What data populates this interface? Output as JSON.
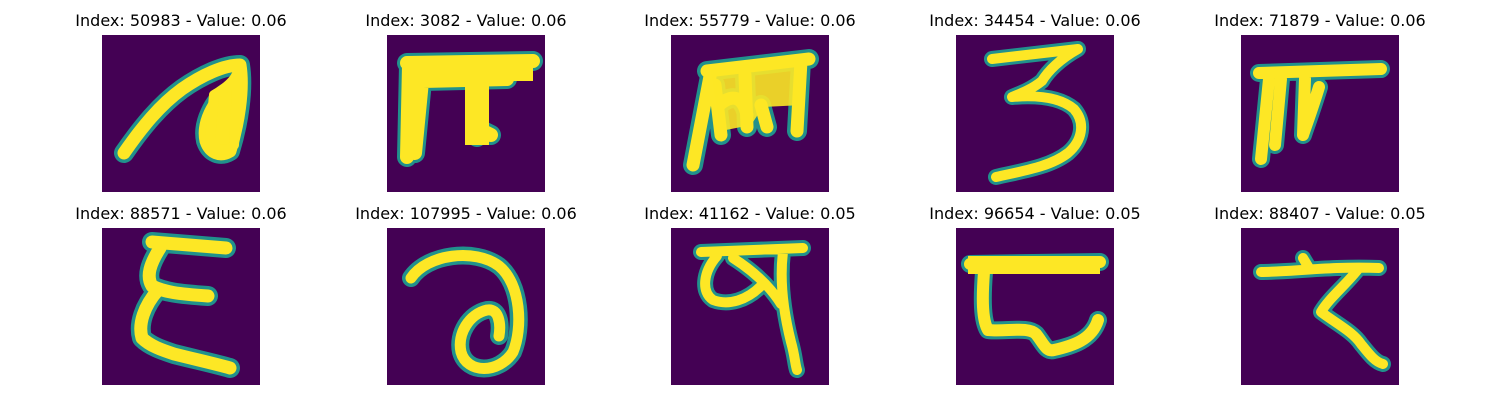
{
  "colors": {
    "background": "#440154",
    "stroke_edge": "#21918c",
    "stroke_core": "#fde725"
  },
  "samples": [
    {
      "title": "Index: 50983 - Value: 0.06",
      "glyph": "glyph-50983"
    },
    {
      "title": "Index: 3082 - Value: 0.06",
      "glyph": "glyph-3082"
    },
    {
      "title": "Index: 55779 - Value: 0.06",
      "glyph": "glyph-55779"
    },
    {
      "title": "Index: 34454 - Value: 0.06",
      "glyph": "glyph-34454"
    },
    {
      "title": "Index: 71879 - Value: 0.06",
      "glyph": "glyph-71879"
    },
    {
      "title": "Index: 88571 - Value: 0.06",
      "glyph": "glyph-88571"
    },
    {
      "title": "Index: 107995 - Value: 0.06",
      "glyph": "glyph-107995"
    },
    {
      "title": "Index: 41162 - Value: 0.05",
      "glyph": "glyph-41162"
    },
    {
      "title": "Index: 96654 - Value: 0.05",
      "glyph": "glyph-96654"
    },
    {
      "title": "Index: 88407 - Value: 0.05",
      "glyph": "glyph-88407"
    }
  ]
}
